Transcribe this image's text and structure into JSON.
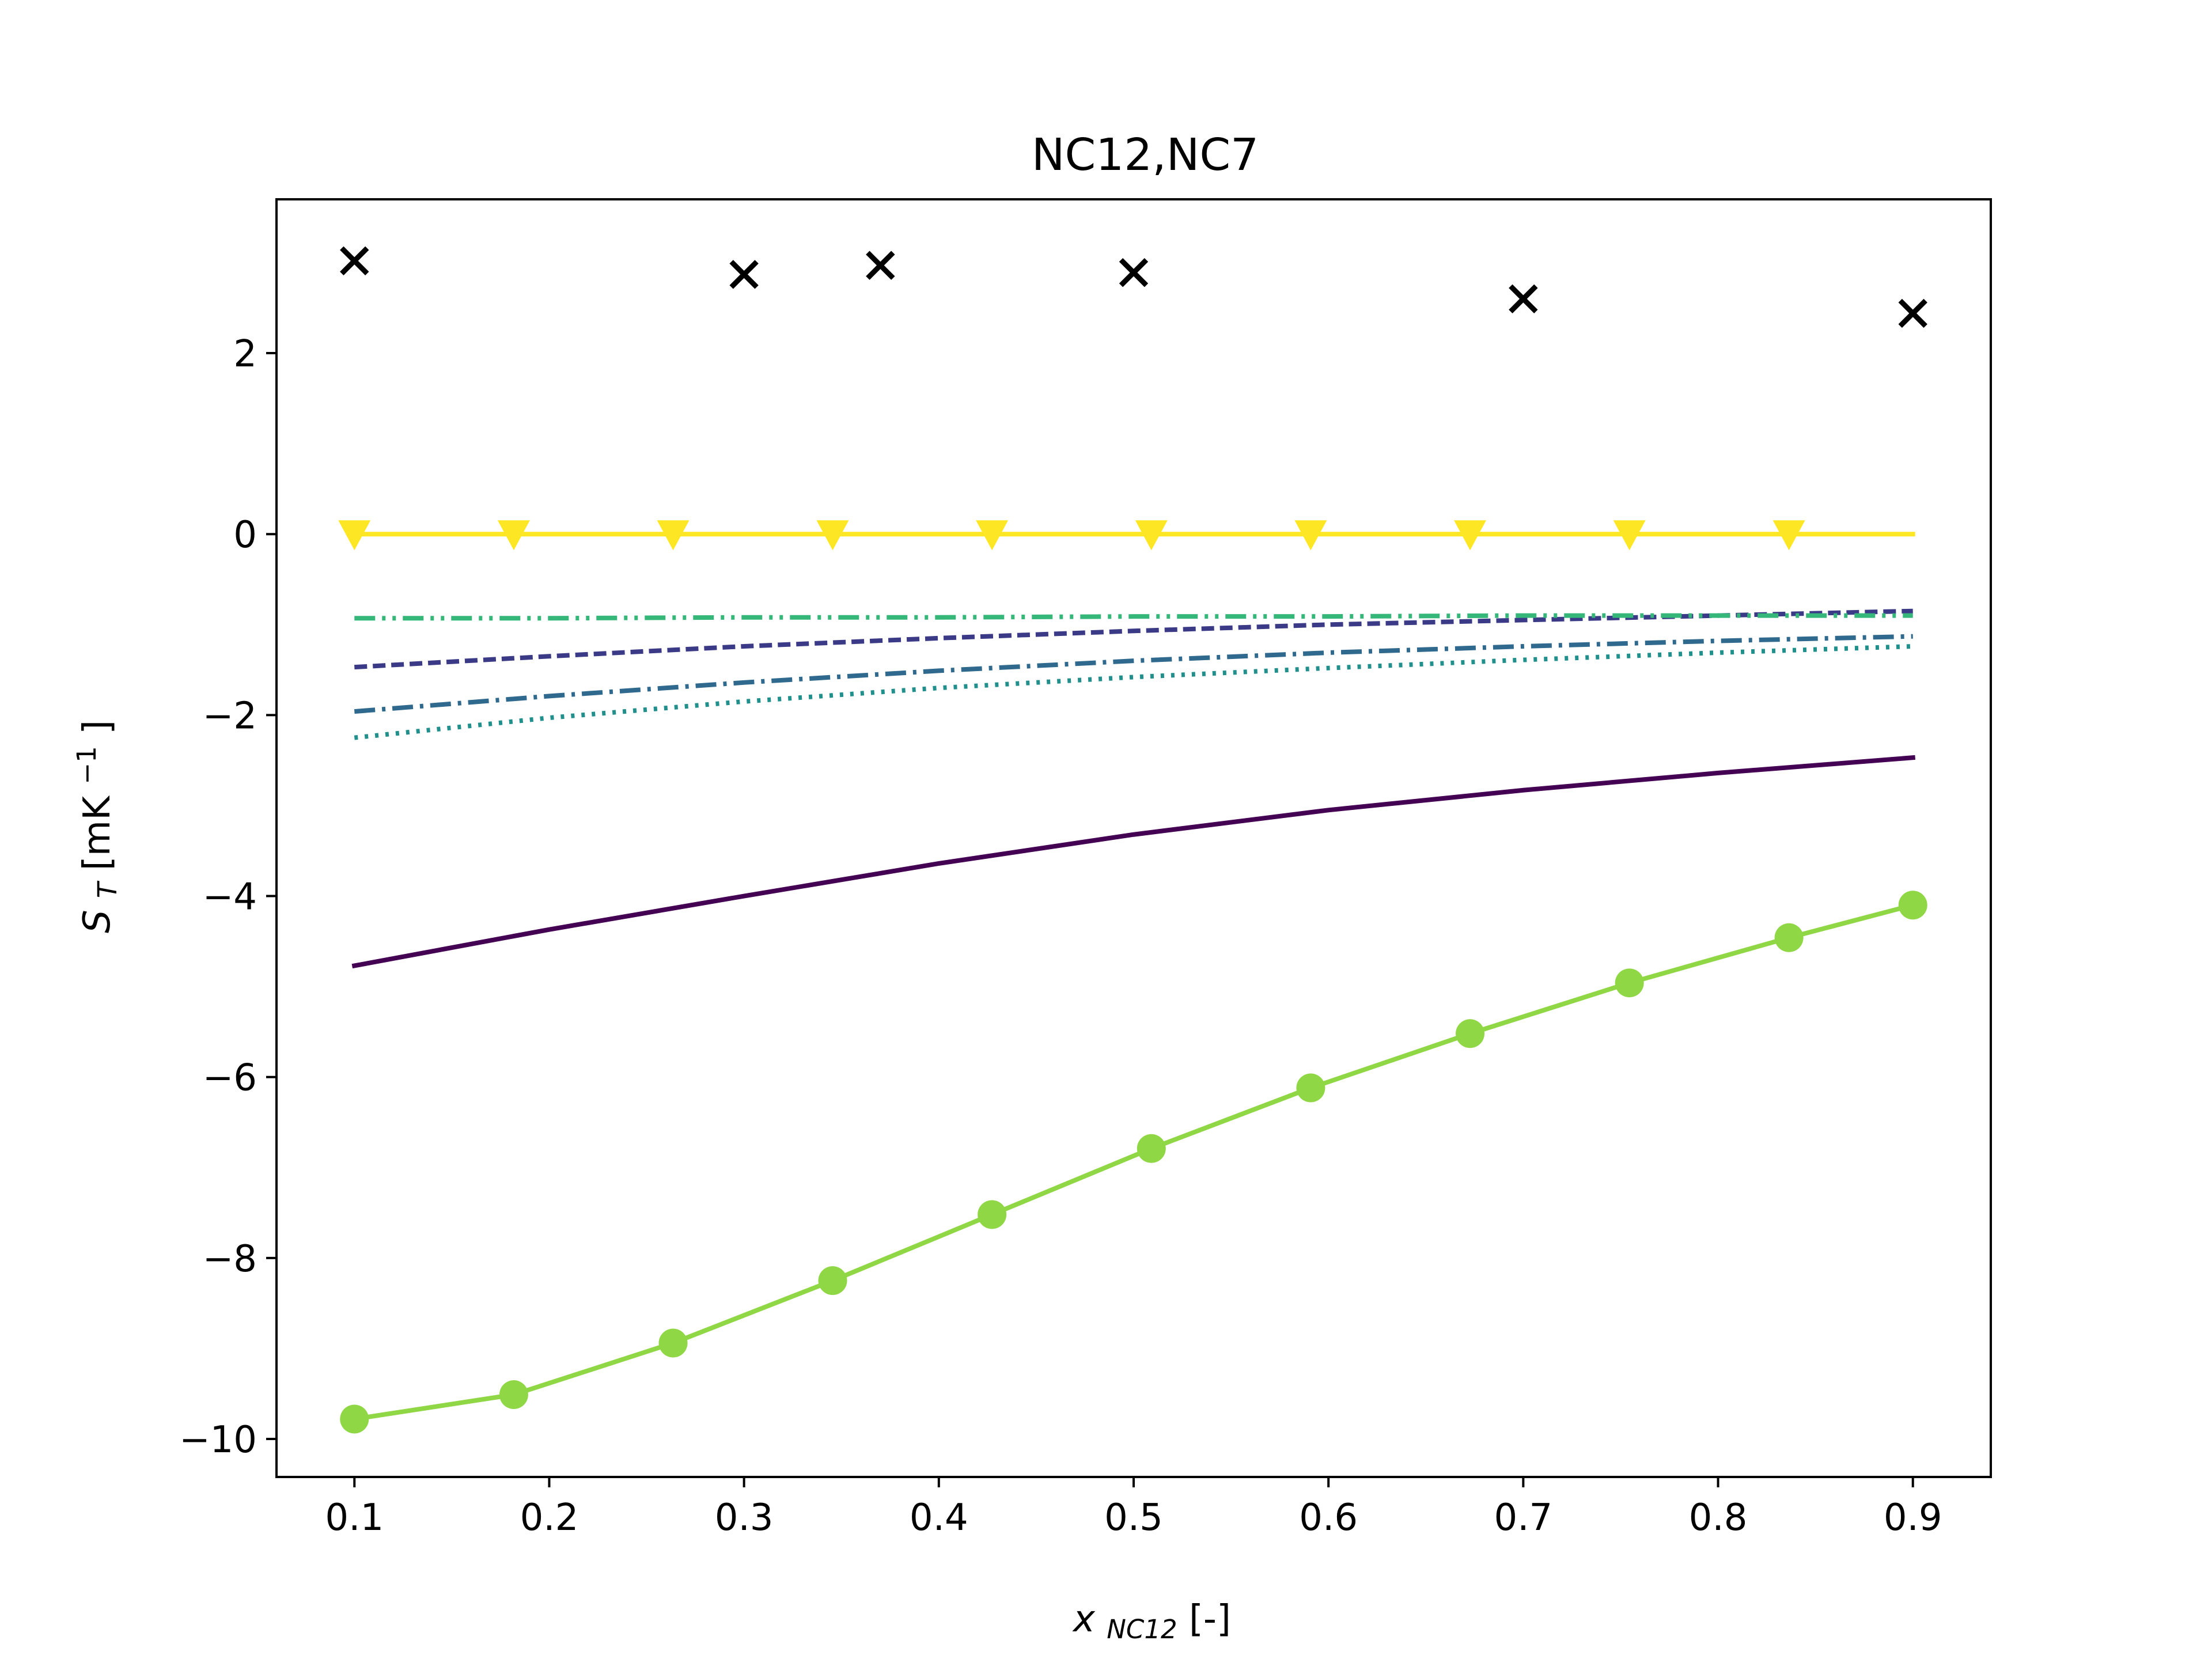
{
  "chart_data": {
    "type": "line",
    "title": "NC12,NC7",
    "xlabel": {
      "base": "x",
      "subscript": "NC12",
      "suffix": " [-]"
    },
    "ylabel": {
      "base": "S",
      "subscript": "T",
      "suffix": " [mK",
      "superscript": "−1",
      "close": "]"
    },
    "xlim": [
      0.06,
      0.94
    ],
    "ylim": [
      -10.42,
      3.7
    ],
    "xticks": [
      0.1,
      0.2,
      0.3,
      0.4,
      0.5,
      0.6,
      0.7,
      0.8,
      0.9
    ],
    "xtick_labels": [
      "0.1",
      "0.2",
      "0.3",
      "0.4",
      "0.5",
      "0.6",
      "0.7",
      "0.8",
      "0.9"
    ],
    "yticks": [
      -10,
      -8,
      -6,
      -4,
      -2,
      0,
      2
    ],
    "ytick_labels": [
      "−10",
      "−8",
      "−6",
      "−4",
      "−2",
      "0",
      "2"
    ],
    "grid": false,
    "series": [
      {
        "id": "purple-solid",
        "color": "#440154",
        "style": "solid",
        "x": [
          0.1,
          0.2,
          0.3,
          0.4,
          0.5,
          0.6,
          0.7,
          0.8,
          0.9
        ],
        "y": [
          -4.77,
          -4.37,
          -4.0,
          -3.64,
          -3.32,
          -3.05,
          -2.83,
          -2.64,
          -2.47
        ]
      },
      {
        "id": "indigo-dashed",
        "color": "#3b3a86",
        "style": "dashed",
        "x": [
          0.1,
          0.2,
          0.3,
          0.4,
          0.5,
          0.6,
          0.7,
          0.8,
          0.9
        ],
        "y": [
          -1.47,
          -1.35,
          -1.24,
          -1.15,
          -1.07,
          -1.0,
          -0.95,
          -0.9,
          -0.85
        ]
      },
      {
        "id": "blue-dashdot",
        "color": "#30698e",
        "style": "dashdot",
        "x": [
          0.1,
          0.2,
          0.3,
          0.4,
          0.5,
          0.6,
          0.7,
          0.8,
          0.9
        ],
        "y": [
          -1.96,
          -1.79,
          -1.64,
          -1.51,
          -1.4,
          -1.31,
          -1.24,
          -1.18,
          -1.13
        ]
      },
      {
        "id": "teal-dotted",
        "color": "#21908c",
        "style": "dotted",
        "x": [
          0.1,
          0.2,
          0.3,
          0.4,
          0.5,
          0.6,
          0.7,
          0.8,
          0.9
        ],
        "y": [
          -2.25,
          -2.03,
          -1.85,
          -1.7,
          -1.58,
          -1.48,
          -1.39,
          -1.31,
          -1.24
        ]
      },
      {
        "id": "green-dashdotdot",
        "color": "#35b779",
        "style": "dashdotdot",
        "x": [
          0.1,
          0.2,
          0.3,
          0.4,
          0.5,
          0.6,
          0.7,
          0.8,
          0.9
        ],
        "y": [
          -0.93,
          -0.93,
          -0.92,
          -0.92,
          -0.91,
          -0.91,
          -0.9,
          -0.9,
          -0.9
        ]
      },
      {
        "id": "lime-solid-circles",
        "color": "#8fd744",
        "style": "solid",
        "marker": "circle",
        "x": [
          0.1,
          0.1818,
          0.2636,
          0.3455,
          0.4273,
          0.5091,
          0.5909,
          0.6727,
          0.7545,
          0.8364,
          0.9
        ],
        "y": [
          -9.78,
          -9.51,
          -8.94,
          -8.25,
          -7.52,
          -6.79,
          -6.12,
          -5.52,
          -4.96,
          -4.46,
          -4.1
        ]
      },
      {
        "id": "yellow-solid-triangles",
        "color": "#fde725",
        "style": "solid",
        "marker": "triangle-down",
        "x": [
          0.1,
          0.1818,
          0.2636,
          0.3455,
          0.4273,
          0.5091,
          0.5909,
          0.6727,
          0.7545,
          0.8364,
          0.9
        ],
        "y": [
          0,
          0,
          0,
          0,
          0,
          0,
          0,
          0,
          0,
          0,
          0
        ],
        "marker_x": [
          0.1,
          0.1818,
          0.2636,
          0.3455,
          0.4273,
          0.5091,
          0.5909,
          0.6727,
          0.7545,
          0.8364
        ]
      },
      {
        "id": "black-crosses",
        "color": "#000000",
        "style": "none",
        "marker": "x",
        "x": [
          0.1,
          0.3,
          0.37,
          0.5,
          0.7,
          0.9
        ],
        "y": [
          3.02,
          2.87,
          2.97,
          2.89,
          2.6,
          2.44
        ]
      }
    ]
  }
}
